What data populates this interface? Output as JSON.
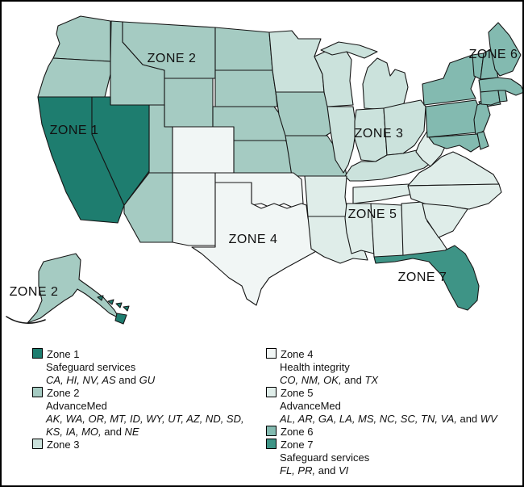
{
  "colors": {
    "zone1": "#1e7d6f",
    "zone2": "#a5cbc2",
    "zone3": "#cbe2dc",
    "zone4": "#f1f6f5",
    "zone5": "#dfede9",
    "zone6": "#83bab0",
    "zone7": "#3e9486",
    "state_border": "#161616",
    "label_text": "#111111"
  },
  "map_labels": [
    {
      "text": "ZONE 1"
    },
    {
      "text": "ZONE 2"
    },
    {
      "text": "ZONE 3"
    },
    {
      "text": "ZONE 4"
    },
    {
      "text": "ZONE 5"
    },
    {
      "text": "ZONE 6"
    },
    {
      "text": "ZONE 7"
    },
    {
      "text": "ZONE 2"
    }
  ],
  "legend": {
    "left": [
      {
        "title": "Zone 1",
        "zone": "zone1",
        "lines": [
          [
            {
              "t": "Safeguard services",
              "i": false
            }
          ],
          [
            {
              "t": "CA, HI, NV, AS",
              "i": true
            },
            {
              "t": " and ",
              "i": false
            },
            {
              "t": "GU",
              "i": true
            }
          ]
        ]
      },
      {
        "title": "Zone 2",
        "zone": "zone2",
        "lines": [
          [
            {
              "t": "AdvanceMed",
              "i": false
            }
          ],
          [
            {
              "t": "AK, WA, OR, MT, ID, WY, UT, AZ, ND, SD,",
              "i": true
            }
          ],
          [
            {
              "t": "KS, IA, MO,",
              "i": true
            },
            {
              "t": " and ",
              "i": false
            },
            {
              "t": "NE",
              "i": true
            }
          ]
        ]
      },
      {
        "title": "Zone 3",
        "zone": "zone3",
        "lines": []
      }
    ],
    "right": [
      {
        "title": "Zone 4",
        "zone": "zone4",
        "lines": [
          [
            {
              "t": "Health integrity",
              "i": false
            }
          ],
          [
            {
              "t": "CO, NM, OK,",
              "i": true
            },
            {
              "t": " and ",
              "i": false
            },
            {
              "t": "TX",
              "i": true
            }
          ]
        ]
      },
      {
        "title": "Zone 5",
        "zone": "zone5",
        "lines": [
          [
            {
              "t": "AdvanceMed",
              "i": false
            }
          ],
          [
            {
              "t": "AL, AR, GA, LA, MS, NC, SC, TN, VA,",
              "i": true
            },
            {
              "t": " and ",
              "i": false
            },
            {
              "t": "WV",
              "i": true
            }
          ]
        ]
      },
      {
        "title": "Zone 6",
        "zone": "zone6",
        "lines": []
      },
      {
        "title": "Zone 7",
        "zone": "zone7",
        "lines": [
          [
            {
              "t": "Safeguard services",
              "i": false
            }
          ],
          [
            {
              "t": "FL, PR,",
              "i": true
            },
            {
              "t": " and ",
              "i": false
            },
            {
              "t": "VI",
              "i": true
            }
          ]
        ]
      }
    ]
  }
}
